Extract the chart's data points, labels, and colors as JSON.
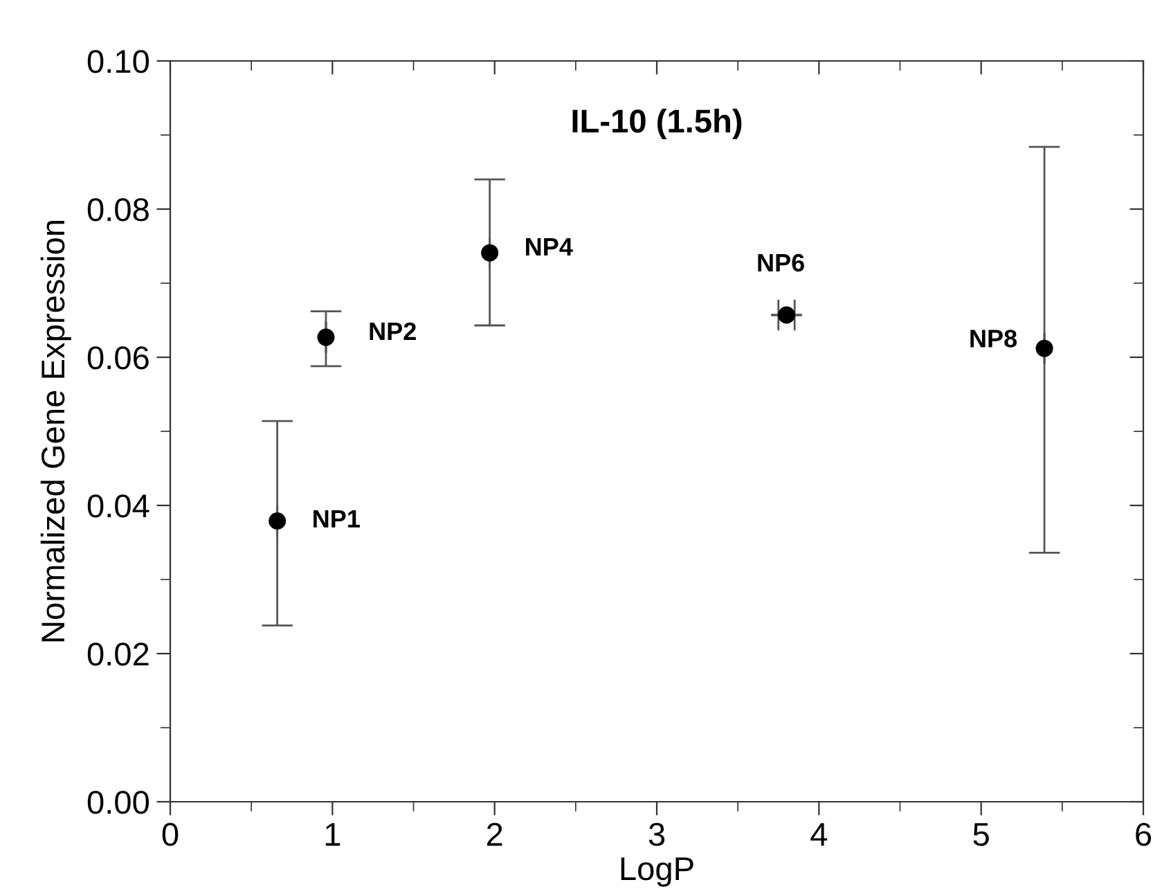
{
  "chart_data": {
    "type": "scatter",
    "title": "IL-10 (1.5h)",
    "xlabel": "LogP",
    "ylabel": "Normalized Gene Expression",
    "x": [
      0.66,
      0.96,
      1.97,
      3.8,
      5.39
    ],
    "values": [
      0.0379,
      0.0627,
      0.0741,
      0.0657,
      0.0612
    ],
    "errors": [
      [
        0.0238,
        0.0514
      ],
      [
        0.0588,
        0.0662
      ],
      [
        0.0643,
        0.084
      ],
      null,
      [
        0.0336,
        0.0884
      ]
    ],
    "xerrors": [
      null,
      null,
      null,
      0.05,
      null
    ],
    "color": "#000000",
    "marker": "circle",
    "annotations": [
      {
        "text": "NP1",
        "x": 0.66,
        "y": 0.0379
      },
      {
        "text": "NP2",
        "x": 0.96,
        "y": 0.0627
      },
      {
        "text": "NP4",
        "x": 1.97,
        "y": 0.0741
      },
      {
        "text": "NP6",
        "x": 3.8,
        "y": 0.0657
      },
      {
        "text": "NP8",
        "x": 5.39,
        "y": 0.0612
      }
    ],
    "xlim": [
      0,
      6
    ],
    "ylim": [
      0,
      0.1
    ],
    "xticks": [
      0,
      1,
      2,
      3,
      4,
      5,
      6
    ],
    "yticks": [
      {
        "value": 0,
        "label": "0.00"
      },
      {
        "value": 0.02,
        "label": "0.02"
      },
      {
        "value": 0.04,
        "label": "0.04"
      },
      {
        "value": 0.06,
        "label": "0.06"
      },
      {
        "value": 0.08,
        "label": "0.08"
      },
      {
        "value": 0.1,
        "label": "0.10"
      }
    ],
    "grid": false
  }
}
